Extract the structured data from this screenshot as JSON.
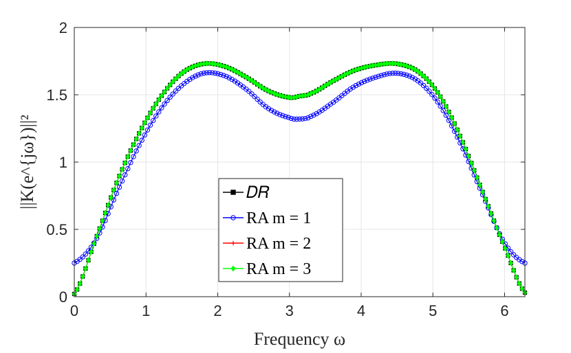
{
  "chart_data": {
    "type": "line",
    "title": "",
    "xlabel": "Frequency ω",
    "ylabel": "||K(e^{jω})||²",
    "xlim": [
      0,
      6.2832
    ],
    "ylim": [
      0,
      2
    ],
    "xticks": [
      0,
      1,
      2,
      3,
      4,
      5,
      6
    ],
    "xtick_labels": [
      "0",
      "1",
      "2",
      "3",
      "4",
      "5",
      "6"
    ],
    "yticks": [
      0,
      0.5,
      1,
      1.5,
      2
    ],
    "ytick_labels": [
      "0",
      "0.5",
      "1",
      "1.5",
      "2"
    ],
    "grid": true,
    "legend_position": "lower-center",
    "x": [
      0,
      0.3,
      0.6,
      0.9,
      1.2,
      1.5,
      1.8,
      2.1,
      2.4,
      2.7,
      3.0,
      3.1416,
      3.3,
      3.6,
      3.9,
      4.2,
      4.5,
      4.8,
      5.1,
      5.4,
      5.7,
      6.0,
      6.2832
    ],
    "series": [
      {
        "name": "DR",
        "label": "𝐷𝑅",
        "color": "#000000",
        "marker": "square",
        "values": [
          0.02,
          0.43,
          0.86,
          1.21,
          1.48,
          1.66,
          1.73,
          1.71,
          1.63,
          1.53,
          1.48,
          1.49,
          1.51,
          1.6,
          1.68,
          1.72,
          1.73,
          1.67,
          1.49,
          1.17,
          0.77,
          0.37,
          0.03
        ]
      },
      {
        "name": "RA m = 1",
        "label": "RA m = 1",
        "color": "#0000ff",
        "marker": "circle",
        "values": [
          0.25,
          0.42,
          0.78,
          1.12,
          1.39,
          1.57,
          1.66,
          1.64,
          1.54,
          1.4,
          1.33,
          1.32,
          1.34,
          1.44,
          1.56,
          1.63,
          1.66,
          1.6,
          1.42,
          1.12,
          0.75,
          0.4,
          0.25
        ]
      },
      {
        "name": "RA m = 2",
        "label": "RA m = 2",
        "color": "#ff0000",
        "marker": "plus",
        "values": [
          0.02,
          0.43,
          0.86,
          1.21,
          1.48,
          1.66,
          1.73,
          1.71,
          1.63,
          1.53,
          1.48,
          1.49,
          1.51,
          1.6,
          1.68,
          1.72,
          1.73,
          1.67,
          1.49,
          1.17,
          0.77,
          0.37,
          0.03
        ]
      },
      {
        "name": "RA m = 3",
        "label": "RA m = 3",
        "color": "#00ff00",
        "marker": "diamond",
        "values": [
          0.02,
          0.43,
          0.86,
          1.21,
          1.48,
          1.66,
          1.73,
          1.71,
          1.63,
          1.53,
          1.48,
          1.49,
          1.51,
          1.6,
          1.68,
          1.72,
          1.73,
          1.67,
          1.49,
          1.17,
          0.77,
          0.37,
          0.03
        ]
      }
    ]
  }
}
